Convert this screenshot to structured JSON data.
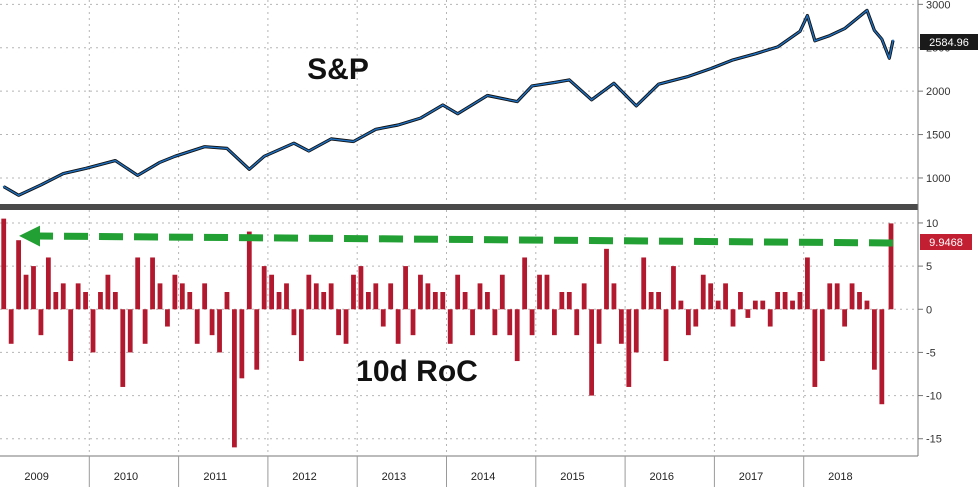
{
  "chart_data": [
    {
      "type": "line",
      "title": "S&P",
      "series_color": "#1f6fbf",
      "ylim": [
        700,
        3050
      ],
      "yticks": [
        "3000",
        "2500",
        "2000",
        "1500",
        "1000"
      ],
      "last_value_label": "2584.96",
      "x_date_range": [
        "2009-01",
        "2018-12"
      ],
      "grid": true,
      "points": [
        {
          "date": "2009-01",
          "value": 900
        },
        {
          "date": "2009-03",
          "value": 800
        },
        {
          "date": "2009-06",
          "value": 920
        },
        {
          "date": "2009-09",
          "value": 1050
        },
        {
          "date": "2009-12",
          "value": 1110
        },
        {
          "date": "2010-04",
          "value": 1200
        },
        {
          "date": "2010-07",
          "value": 1030
        },
        {
          "date": "2010-10",
          "value": 1180
        },
        {
          "date": "2010-12",
          "value": 1250
        },
        {
          "date": "2011-04",
          "value": 1360
        },
        {
          "date": "2011-07",
          "value": 1340
        },
        {
          "date": "2011-10",
          "value": 1100
        },
        {
          "date": "2011-12",
          "value": 1250
        },
        {
          "date": "2012-04",
          "value": 1400
        },
        {
          "date": "2012-06",
          "value": 1310
        },
        {
          "date": "2012-09",
          "value": 1450
        },
        {
          "date": "2012-12",
          "value": 1420
        },
        {
          "date": "2013-03",
          "value": 1560
        },
        {
          "date": "2013-06",
          "value": 1610
        },
        {
          "date": "2013-09",
          "value": 1690
        },
        {
          "date": "2013-12",
          "value": 1840
        },
        {
          "date": "2014-02",
          "value": 1740
        },
        {
          "date": "2014-06",
          "value": 1950
        },
        {
          "date": "2014-10",
          "value": 1880
        },
        {
          "date": "2014-12",
          "value": 2060
        },
        {
          "date": "2015-03",
          "value": 2100
        },
        {
          "date": "2015-05",
          "value": 2130
        },
        {
          "date": "2015-08",
          "value": 1900
        },
        {
          "date": "2015-11",
          "value": 2090
        },
        {
          "date": "2016-02",
          "value": 1830
        },
        {
          "date": "2016-05",
          "value": 2080
        },
        {
          "date": "2016-09",
          "value": 2170
        },
        {
          "date": "2016-12",
          "value": 2260
        },
        {
          "date": "2017-03",
          "value": 2360
        },
        {
          "date": "2017-06",
          "value": 2430
        },
        {
          "date": "2017-09",
          "value": 2510
        },
        {
          "date": "2017-12",
          "value": 2690
        },
        {
          "date": "2018-01",
          "value": 2870
        },
        {
          "date": "2018-02",
          "value": 2580
        },
        {
          "date": "2018-04",
          "value": 2640
        },
        {
          "date": "2018-06",
          "value": 2720
        },
        {
          "date": "2018-08",
          "value": 2860
        },
        {
          "date": "2018-09",
          "value": 2930
        },
        {
          "date": "2018-10",
          "value": 2700
        },
        {
          "date": "2018-11",
          "value": 2600
        },
        {
          "date": "2018-12",
          "value": 2380
        },
        {
          "date": "2018-12",
          "value": 2584.96
        }
      ]
    },
    {
      "type": "bar",
      "title": "10d RoC",
      "series_color": "#b3192e",
      "ylim": [
        -17,
        11.5
      ],
      "yticks": [
        "10",
        "5",
        "0",
        "-5",
        "-10",
        "-15"
      ],
      "last_value_label": "9.9468",
      "x_date_range": [
        "2009-01",
        "2018-12"
      ],
      "grid": true,
      "annotation": "dashed arrow from latest value back to the same level in 2009",
      "annotation_color": "#22a034",
      "points": [
        {
          "date": "2009-01",
          "value": 10.5
        },
        {
          "date": "2009-02",
          "value": -4
        },
        {
          "date": "2009-03",
          "value": 8
        },
        {
          "date": "2009-04",
          "value": 4
        },
        {
          "date": "2009-05",
          "value": 5
        },
        {
          "date": "2009-06",
          "value": -3
        },
        {
          "date": "2009-07",
          "value": 6
        },
        {
          "date": "2009-08",
          "value": 2
        },
        {
          "date": "2009-09",
          "value": 3
        },
        {
          "date": "2009-10",
          "value": -6
        },
        {
          "date": "2009-11",
          "value": 3
        },
        {
          "date": "2009-12",
          "value": 2
        },
        {
          "date": "2010-01",
          "value": -5
        },
        {
          "date": "2010-02",
          "value": 2
        },
        {
          "date": "2010-03",
          "value": 4
        },
        {
          "date": "2010-04",
          "value": 2
        },
        {
          "date": "2010-05",
          "value": -9
        },
        {
          "date": "2010-06",
          "value": -5
        },
        {
          "date": "2010-07",
          "value": 6
        },
        {
          "date": "2010-08",
          "value": -4
        },
        {
          "date": "2010-09",
          "value": 6
        },
        {
          "date": "2010-10",
          "value": 3
        },
        {
          "date": "2010-11",
          "value": -2
        },
        {
          "date": "2010-12",
          "value": 4
        },
        {
          "date": "2011-01",
          "value": 3
        },
        {
          "date": "2011-02",
          "value": 2
        },
        {
          "date": "2011-03",
          "value": -4
        },
        {
          "date": "2011-04",
          "value": 3
        },
        {
          "date": "2011-05",
          "value": -3
        },
        {
          "date": "2011-06",
          "value": -5
        },
        {
          "date": "2011-07",
          "value": 2
        },
        {
          "date": "2011-08",
          "value": -16
        },
        {
          "date": "2011-09",
          "value": -8
        },
        {
          "date": "2011-10",
          "value": 9
        },
        {
          "date": "2011-11",
          "value": -7
        },
        {
          "date": "2011-12",
          "value": 5
        },
        {
          "date": "2012-01",
          "value": 4
        },
        {
          "date": "2012-02",
          "value": 2
        },
        {
          "date": "2012-03",
          "value": 3
        },
        {
          "date": "2012-04",
          "value": -3
        },
        {
          "date": "2012-05",
          "value": -6
        },
        {
          "date": "2012-06",
          "value": 4
        },
        {
          "date": "2012-07",
          "value": 3
        },
        {
          "date": "2012-08",
          "value": 2
        },
        {
          "date": "2012-09",
          "value": 3
        },
        {
          "date": "2012-10",
          "value": -3
        },
        {
          "date": "2012-11",
          "value": -4
        },
        {
          "date": "2012-12",
          "value": 4
        },
        {
          "date": "2013-01",
          "value": 5
        },
        {
          "date": "2013-02",
          "value": 2
        },
        {
          "date": "2013-03",
          "value": 3
        },
        {
          "date": "2013-04",
          "value": -2
        },
        {
          "date": "2013-05",
          "value": 3
        },
        {
          "date": "2013-06",
          "value": -4
        },
        {
          "date": "2013-07",
          "value": 5
        },
        {
          "date": "2013-08",
          "value": -3
        },
        {
          "date": "2013-09",
          "value": 4
        },
        {
          "date": "2013-10",
          "value": 3
        },
        {
          "date": "2013-11",
          "value": 2
        },
        {
          "date": "2013-12",
          "value": 2
        },
        {
          "date": "2014-01",
          "value": -4
        },
        {
          "date": "2014-02",
          "value": 4
        },
        {
          "date": "2014-03",
          "value": 2
        },
        {
          "date": "2014-04",
          "value": -3
        },
        {
          "date": "2014-05",
          "value": 3
        },
        {
          "date": "2014-06",
          "value": 2
        },
        {
          "date": "2014-07",
          "value": -3
        },
        {
          "date": "2014-08",
          "value": 4
        },
        {
          "date": "2014-09",
          "value": -3
        },
        {
          "date": "2014-10",
          "value": -6
        },
        {
          "date": "2014-11",
          "value": 6
        },
        {
          "date": "2014-12",
          "value": -3
        },
        {
          "date": "2015-01",
          "value": 4
        },
        {
          "date": "2015-02",
          "value": 4
        },
        {
          "date": "2015-03",
          "value": -3
        },
        {
          "date": "2015-04",
          "value": 2
        },
        {
          "date": "2015-05",
          "value": 2
        },
        {
          "date": "2015-06",
          "value": -3
        },
        {
          "date": "2015-07",
          "value": 3
        },
        {
          "date": "2015-08",
          "value": -10
        },
        {
          "date": "2015-09",
          "value": -4
        },
        {
          "date": "2015-10",
          "value": 7
        },
        {
          "date": "2015-11",
          "value": 3
        },
        {
          "date": "2015-12",
          "value": -4
        },
        {
          "date": "2016-01",
          "value": -9
        },
        {
          "date": "2016-02",
          "value": -5
        },
        {
          "date": "2016-03",
          "value": 6
        },
        {
          "date": "2016-04",
          "value": 2
        },
        {
          "date": "2016-05",
          "value": 2
        },
        {
          "date": "2016-06",
          "value": -6
        },
        {
          "date": "2016-07",
          "value": 5
        },
        {
          "date": "2016-08",
          "value": 1
        },
        {
          "date": "2016-09",
          "value": -3
        },
        {
          "date": "2016-10",
          "value": -2
        },
        {
          "date": "2016-11",
          "value": 4
        },
        {
          "date": "2016-12",
          "value": 3
        },
        {
          "date": "2017-01",
          "value": 1
        },
        {
          "date": "2017-02",
          "value": 3
        },
        {
          "date": "2017-03",
          "value": -2
        },
        {
          "date": "2017-04",
          "value": 2
        },
        {
          "date": "2017-05",
          "value": -1
        },
        {
          "date": "2017-06",
          "value": 1
        },
        {
          "date": "2017-07",
          "value": 1
        },
        {
          "date": "2017-08",
          "value": -2
        },
        {
          "date": "2017-09",
          "value": 2
        },
        {
          "date": "2017-10",
          "value": 2
        },
        {
          "date": "2017-11",
          "value": 1
        },
        {
          "date": "2017-12",
          "value": 2
        },
        {
          "date": "2018-01",
          "value": 6
        },
        {
          "date": "2018-02",
          "value": -9
        },
        {
          "date": "2018-03",
          "value": -6
        },
        {
          "date": "2018-04",
          "value": 3
        },
        {
          "date": "2018-05",
          "value": 3
        },
        {
          "date": "2018-06",
          "value": -2
        },
        {
          "date": "2018-07",
          "value": 3
        },
        {
          "date": "2018-08",
          "value": 2
        },
        {
          "date": "2018-09",
          "value": 1
        },
        {
          "date": "2018-10",
          "value": -7
        },
        {
          "date": "2018-11",
          "value": -11
        },
        {
          "date": "2018-12",
          "value": 9.9468
        }
      ]
    }
  ],
  "x_axis": {
    "years": [
      "2009",
      "2010",
      "2011",
      "2012",
      "2013",
      "2014",
      "2015",
      "2016",
      "2017",
      "2018"
    ]
  }
}
